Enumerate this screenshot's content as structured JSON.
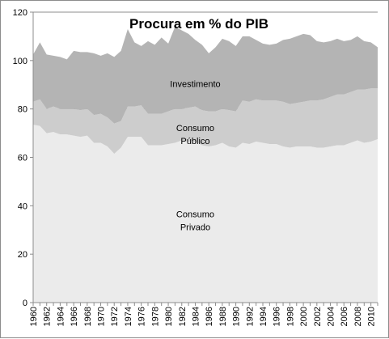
{
  "chart_data": {
    "type": "area",
    "title": "Procura em % do PIB",
    "xlabel": "",
    "ylabel": "",
    "ylim": [
      0,
      120
    ],
    "yticks": [
      0,
      20,
      40,
      60,
      80,
      100,
      120
    ],
    "grid": true,
    "stacked": true,
    "x": [
      1960,
      1961,
      1962,
      1963,
      1964,
      1965,
      1966,
      1967,
      1968,
      1969,
      1970,
      1971,
      1972,
      1973,
      1974,
      1975,
      1976,
      1977,
      1978,
      1979,
      1980,
      1981,
      1982,
      1983,
      1984,
      1985,
      1986,
      1987,
      1988,
      1989,
      1990,
      1991,
      1992,
      1993,
      1994,
      1995,
      1996,
      1997,
      1998,
      1999,
      2000,
      2001,
      2002,
      2003,
      2004,
      2005,
      2006,
      2007,
      2008,
      2009,
      2010,
      2011
    ],
    "xtick_labels": [
      "1960",
      "1962",
      "1964",
      "1966",
      "1968",
      "1970",
      "1972",
      "1974",
      "1976",
      "1978",
      "1980",
      "1982",
      "1984",
      "1986",
      "1988",
      "1990",
      "1992",
      "1994",
      "1996",
      "1998",
      "2000",
      "2002",
      "2004",
      "2006",
      "2008",
      "2010"
    ],
    "series": [
      {
        "name": "Consumo Privado",
        "label_lines": [
          "Consumo",
          "Privado"
        ],
        "label_at": [
          1984,
          34
        ],
        "color": "#ebebeb",
        "values": [
          73.5,
          73,
          70,
          70.5,
          69.5,
          69.5,
          69,
          68.5,
          69,
          66,
          66,
          64.5,
          61.5,
          64,
          68.5,
          68.5,
          68.5,
          65,
          65,
          65,
          65.5,
          66,
          67,
          66.5,
          66.5,
          65,
          64.5,
          65,
          66,
          64.5,
          64,
          66,
          65.5,
          66.5,
          66,
          65.5,
          65.5,
          64.5,
          64,
          64.5,
          64.5,
          64.5,
          64,
          64,
          64.5,
          65,
          65,
          66,
          67,
          66,
          66.5,
          67.5
        ]
      },
      {
        "name": "Consumo Público",
        "label_lines": [
          "Consumo",
          "Público"
        ],
        "label_at": [
          1984,
          69.5
        ],
        "color": "#cdcdcd",
        "values": [
          9.5,
          11,
          10,
          10.5,
          10.5,
          10.5,
          11,
          11,
          11,
          11.5,
          12,
          12,
          12.5,
          11,
          12.5,
          12.5,
          13,
          13,
          13,
          13,
          13.5,
          14,
          13,
          14,
          14.5,
          14.5,
          14.5,
          14,
          14,
          15,
          15,
          17.5,
          17.5,
          17.5,
          17.5,
          18,
          18,
          18.5,
          18,
          18,
          18.5,
          19,
          19.5,
          20,
          20.5,
          21,
          21,
          21,
          21,
          22,
          22,
          21
        ]
      },
      {
        "name": "Investimento",
        "label_lines": [
          "Investimento"
        ],
        "label_at": [
          1984,
          90.5
        ],
        "color": "#b4b4b4",
        "values": [
          19.5,
          23.5,
          22.5,
          21,
          21.5,
          20.5,
          24,
          24,
          23.5,
          25.5,
          24,
          26.5,
          27.5,
          29,
          32,
          26.5,
          24.5,
          30,
          28.5,
          31.5,
          28,
          34,
          32.5,
          30.5,
          27.5,
          27,
          24,
          26.5,
          29,
          28.5,
          27,
          26.5,
          27,
          24.5,
          23.5,
          23,
          23.5,
          25.5,
          27,
          27.5,
          28,
          27,
          24.5,
          23.5,
          23,
          23,
          22,
          21.5,
          22,
          20,
          19,
          17
        ]
      }
    ]
  }
}
